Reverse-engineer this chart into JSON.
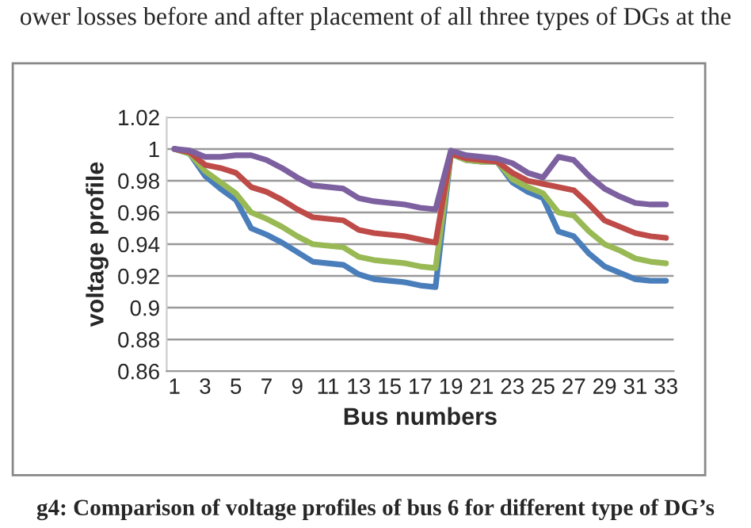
{
  "chart_data": {
    "type": "line",
    "xlabel": "Bus numbers",
    "ylabel": "voltage profile",
    "categories": [
      "1",
      null,
      "3",
      null,
      "5",
      null,
      "7",
      null,
      "9",
      null,
      "11",
      null,
      "13",
      null,
      "15",
      null,
      "17",
      null,
      "19",
      null,
      "21",
      null,
      "23",
      null,
      "25",
      null,
      "27",
      null,
      "29",
      null,
      "31",
      null,
      "33"
    ],
    "series": [
      {
        "color": "#4a7ebb",
        "values": [
          1,
          0.997,
          0.983,
          0.975,
          0.968,
          0.95,
          0.946,
          0.941,
          0.935,
          0.929,
          0.928,
          0.927,
          0.921,
          0.918,
          0.917,
          0.916,
          0.914,
          0.913,
          0.997,
          0.993,
          0.992,
          0.992,
          0.979,
          0.973,
          0.969,
          0.948,
          0.945,
          0.934,
          0.926,
          0.922,
          0.918,
          0.917,
          0.917
        ]
      },
      {
        "color": "#98b954",
        "values": [
          1,
          0.997,
          0.986,
          0.979,
          0.972,
          0.96,
          0.956,
          0.951,
          0.945,
          0.94,
          0.939,
          0.938,
          0.932,
          0.93,
          0.929,
          0.928,
          0.926,
          0.925,
          0.997,
          0.993,
          0.992,
          0.992,
          0.981,
          0.976,
          0.972,
          0.96,
          0.958,
          0.948,
          0.94,
          0.936,
          0.931,
          0.929,
          0.928
        ]
      },
      {
        "color": "#be4b48",
        "values": [
          1,
          0.998,
          0.99,
          0.988,
          0.985,
          0.976,
          0.973,
          0.968,
          0.962,
          0.957,
          0.956,
          0.955,
          0.949,
          0.947,
          0.946,
          0.945,
          0.943,
          0.941,
          0.997,
          0.994,
          0.993,
          0.992,
          0.985,
          0.98,
          0.978,
          0.976,
          0.974,
          0.965,
          0.955,
          0.951,
          0.947,
          0.945,
          0.944
        ]
      },
      {
        "color": "#7d60a0",
        "values": [
          1,
          0.999,
          0.995,
          0.995,
          0.996,
          0.996,
          0.993,
          0.988,
          0.982,
          0.977,
          0.976,
          0.975,
          0.969,
          0.967,
          0.966,
          0.965,
          0.963,
          0.962,
          0.999,
          0.996,
          0.995,
          0.994,
          0.991,
          0.985,
          0.982,
          0.995,
          0.993,
          0.983,
          0.975,
          0.97,
          0.966,
          0.965,
          0.965
        ]
      }
    ],
    "ylim": [
      0.86,
      1.02
    ],
    "yticks": [
      0.86,
      0.88,
      0.9,
      0.92,
      0.94,
      0.96,
      0.98,
      1,
      1.02
    ],
    "grid": "y",
    "legend": false,
    "marker": "none",
    "line_style": "solid",
    "annotations": [
      "ower losses before and after placement of all three types of DGs at the",
      "g4: Comparison of voltage profiles of bus 6 for different type of DG’s"
    ]
  }
}
